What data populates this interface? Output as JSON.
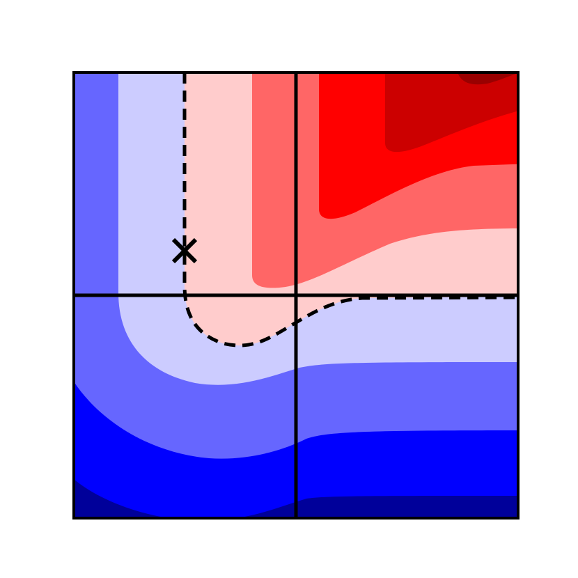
{
  "chart_data": {
    "type": "contour",
    "level_colors": [
      "#00009a",
      "#0000ff",
      "#6666ff",
      "#ccccff",
      "#ffcccc",
      "#ff6666",
      "#ff0000",
      "#cc0000",
      "#990000"
    ]
  }
}
